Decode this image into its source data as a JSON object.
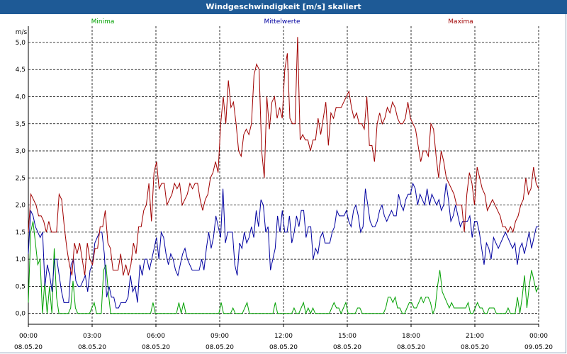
{
  "window": {
    "title": "Windgeschwindigkeit [m/s] skaliert"
  },
  "chart_data": {
    "type": "line",
    "title": "Windgeschwindigkeit [m/s] skaliert",
    "ylabel": "m/s",
    "xlabel": "",
    "ylim": [
      -0.2,
      5.3
    ],
    "xlim": [
      0,
      24
    ],
    "grid": true,
    "y_ticks": [
      "0,0",
      "0,5",
      "1,0",
      "1,5",
      "2,0",
      "2,5",
      "3,0",
      "3,5",
      "4,0",
      "4,5",
      "5,0"
    ],
    "x_ticks": [
      {
        "time": "00:00",
        "date": "08.05.20"
      },
      {
        "time": "03:00",
        "date": "08.05.20"
      },
      {
        "time": "06:00",
        "date": "08.05.20"
      },
      {
        "time": "09:00",
        "date": "08.05.20"
      },
      {
        "time": "12:00",
        "date": "08.05.20"
      },
      {
        "time": "15:00",
        "date": "08.05.20"
      },
      {
        "time": "18:00",
        "date": "08.05.20"
      },
      {
        "time": "21:00",
        "date": "08.05.20"
      },
      {
        "time": "00:00",
        "date": "09.05.20"
      }
    ],
    "series": [
      {
        "name": "Minima",
        "color": "#00a000",
        "values": [
          0.2,
          1.5,
          1.7,
          1.3,
          0.9,
          1.0,
          0,
          0.6,
          0,
          0.5,
          0,
          1.2,
          0.3,
          0,
          0,
          0,
          0,
          0,
          0.1,
          0.6,
          0.1,
          0,
          0,
          0,
          0,
          0,
          0,
          0.1,
          0.2,
          0,
          0,
          0,
          0.8,
          0.9,
          0.4,
          0,
          0,
          0,
          0,
          0,
          0,
          0,
          0,
          0,
          0,
          0,
          0,
          0,
          0,
          0,
          0,
          0,
          0,
          0.2,
          0,
          0,
          0,
          0,
          0,
          0,
          0,
          0,
          0,
          0,
          0.2,
          0,
          0.2,
          0,
          0,
          0,
          0,
          0,
          0,
          0,
          0,
          0,
          0,
          0,
          0,
          0,
          0,
          0,
          0.2,
          0,
          0,
          0,
          0,
          0.1,
          0,
          0,
          0,
          0,
          0.1,
          0.2,
          0,
          0,
          0,
          0,
          0,
          0,
          0,
          0,
          0,
          0,
          0,
          0.2,
          0,
          0,
          0,
          0,
          0,
          0,
          0,
          0.1,
          0,
          0,
          0.1,
          0.2,
          0,
          0.1,
          0,
          0.1,
          0,
          0,
          0,
          0,
          0,
          0,
          0,
          0.1,
          0.2,
          0.1,
          0.1,
          0,
          0.1,
          0.2,
          0,
          0,
          0,
          0,
          0.1,
          0.1,
          0,
          0,
          0,
          0,
          0,
          0,
          0,
          0,
          0,
          0,
          0.1,
          0.3,
          0.3,
          0.2,
          0.3,
          0.1,
          0.1,
          0,
          0,
          0.1,
          0.2,
          0.2,
          0.1,
          0.1,
          0.2,
          0.3,
          0.2,
          0.3,
          0.3,
          0.2,
          0,
          0.1,
          0.5,
          0.8,
          0.4,
          0.3,
          0.2,
          0.1,
          0.2,
          0.1,
          0.1,
          0.1,
          0.1,
          0.1,
          0.1,
          0.2,
          0,
          0,
          0.1,
          0.2,
          0.1,
          0.1,
          0,
          0,
          0.1,
          0.1,
          0.1,
          0,
          0,
          0,
          0,
          0,
          0.1,
          0,
          0,
          0,
          0.3,
          0,
          0.3,
          0.7,
          0.1,
          0.5,
          0.8,
          0.6,
          0.4,
          0.5
        ]
      },
      {
        "name": "Mittelwerte",
        "color": "#0000a0",
        "values": [
          1.1,
          1.9,
          1.8,
          1.6,
          1.5,
          1.4,
          1.5,
          0.5,
          0.9,
          0.7,
          0.4,
          1.0,
          1.0,
          0.7,
          0.4,
          0.2,
          0.2,
          0.2,
          0.9,
          1.0,
          0.6,
          0.5,
          0.5,
          0.6,
          0.7,
          0.4,
          0.8,
          0.9,
          1.3,
          1.4,
          1.5,
          1.5,
          1.1,
          0.3,
          0.5,
          0.3,
          0.3,
          0.1,
          0.1,
          0.2,
          0.2,
          0.2,
          0.3,
          0.7,
          0.4,
          0.5,
          0.2,
          0.9,
          0.7,
          1.0,
          1.0,
          0.8,
          1.0,
          1.2,
          1.4,
          1.0,
          1.5,
          1.4,
          1.1,
          0.9,
          1.1,
          1.0,
          0.8,
          0.7,
          0.9,
          1.1,
          1.2,
          1.0,
          0.9,
          0.8,
          0.8,
          0.8,
          0.8,
          1.0,
          0.8,
          1.2,
          1.5,
          1.2,
          1.4,
          1.8,
          1.6,
          1.4,
          2.3,
          1.3,
          1.5,
          1.5,
          1.5,
          0.9,
          0.7,
          1.3,
          1.2,
          1.5,
          1.3,
          1.4,
          1.6,
          1.4,
          1.9,
          1.6,
          2.1,
          2.0,
          1.5,
          1.6,
          0.8,
          1.0,
          1.2,
          1.8,
          1.5,
          1.9,
          1.5,
          1.5,
          1.8,
          1.3,
          1.5,
          1.8,
          1.6,
          1.9,
          1.9,
          1.4,
          1.6,
          1.6,
          1.0,
          1.2,
          1.1,
          1.4,
          1.5,
          1.3,
          1.3,
          1.3,
          1.5,
          1.6,
          1.9,
          1.8,
          1.8,
          1.8,
          1.9,
          1.7,
          1.6,
          1.9,
          2.0,
          1.8,
          1.5,
          1.6,
          2.3,
          2.0,
          1.7,
          1.6,
          1.6,
          1.7,
          1.9,
          2.0,
          1.8,
          1.7,
          1.8,
          1.9,
          1.8,
          1.8,
          2.2,
          2.0,
          1.9,
          2.1,
          2.2,
          2.2,
          2.4,
          2.3,
          2.0,
          2.2,
          2.1,
          2.0,
          2.3,
          2.0,
          2.2,
          2.1,
          2.0,
          2.1,
          1.9,
          2.0,
          2.4,
          2.1,
          1.7,
          1.8,
          2.0,
          1.8,
          1.6,
          1.7,
          1.7,
          1.7,
          1.8,
          1.4,
          1.7,
          1.7,
          1.5,
          1.2,
          0.9,
          1.3,
          1.2,
          1.0,
          1.4,
          1.3,
          1.2,
          1.3,
          1.4,
          1.5,
          1.4,
          1.3,
          1.2,
          1.3,
          0.9,
          1.2,
          1.3,
          1.1,
          1.3,
          1.5,
          1.2,
          1.4,
          1.6,
          1.6
        ]
      },
      {
        "name": "Maxima",
        "color": "#a00000",
        "values": [
          1.5,
          2.2,
          2.1,
          2.0,
          1.8,
          1.8,
          1.7,
          1.5,
          1.7,
          1.5,
          1.5,
          1.5,
          2.2,
          2.1,
          1.6,
          1.2,
          0.9,
          0.7,
          1.3,
          1.1,
          1.3,
          1.0,
          0.7,
          1.3,
          1.0,
          0.9,
          1.2,
          1.2,
          1.6,
          1.6,
          1.9,
          1.3,
          1.2,
          0.8,
          0.8,
          0.8,
          1.1,
          0.7,
          0.9,
          0.7,
          0.9,
          1.3,
          1.1,
          1.6,
          1.6,
          1.9,
          2.0,
          2.4,
          1.7,
          2.6,
          2.8,
          2.3,
          2.4,
          2.4,
          2.0,
          2.1,
          2.2,
          2.4,
          2.3,
          2.4,
          2.0,
          2.1,
          2.2,
          2.4,
          2.3,
          2.4,
          2.4,
          2.1,
          1.9,
          2.1,
          2.2,
          2.5,
          2.6,
          2.8,
          2.6,
          3.5,
          4.0,
          3.5,
          4.3,
          3.8,
          3.9,
          3.5,
          3.0,
          2.9,
          3.3,
          3.4,
          3.3,
          3.5,
          4.4,
          4.6,
          4.5,
          3.0,
          2.5,
          4.0,
          3.4,
          3.9,
          4.0,
          3.6,
          3.8,
          3.6,
          4.5,
          4.8,
          3.6,
          3.5,
          3.5,
          5.1,
          3.2,
          3.3,
          3.2,
          3.2,
          3.0,
          3.2,
          3.2,
          3.6,
          3.3,
          3.6,
          3.9,
          3.1,
          3.7,
          3.6,
          3.8,
          3.8,
          3.8,
          3.9,
          4.0,
          4.1,
          3.8,
          3.6,
          3.7,
          3.5,
          3.5,
          3.4,
          4.0,
          3.1,
          3.1,
          2.8,
          3.5,
          3.7,
          3.5,
          3.6,
          3.8,
          3.7,
          3.9,
          3.8,
          3.6,
          3.5,
          3.5,
          3.6,
          3.9,
          3.6,
          3.5,
          3.4,
          3.1,
          2.8,
          3.0,
          3.0,
          2.9,
          3.5,
          3.4,
          2.9,
          2.5,
          3.0,
          2.8,
          2.5,
          2.4,
          2.3,
          2.2,
          2.0,
          2.0,
          2.0,
          1.5,
          2.2,
          2.6,
          2.4,
          2.0,
          2.7,
          2.5,
          2.3,
          2.2,
          1.9,
          2.0,
          2.1,
          2.0,
          1.9,
          1.8,
          1.6,
          1.6,
          1.5,
          1.6,
          1.5,
          1.7,
          1.8,
          2.0,
          2.1,
          2.5,
          2.2,
          2.3,
          2.7,
          2.4,
          2.3
        ]
      }
    ]
  }
}
